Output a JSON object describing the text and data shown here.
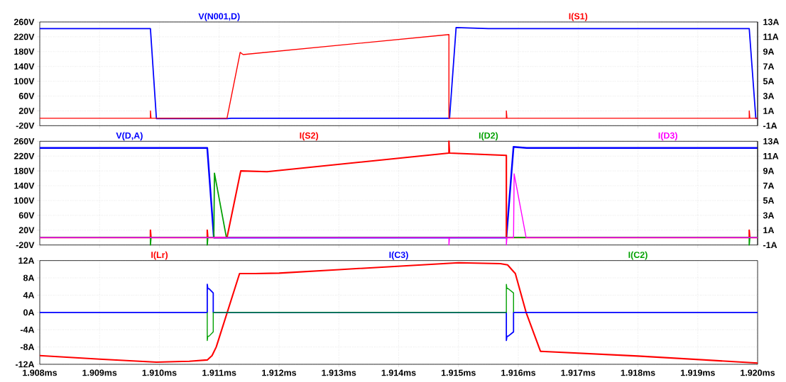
{
  "chart_data": [
    {
      "type": "line",
      "xlim": [
        1.908,
        1.92
      ],
      "ylim": [
        -20,
        260
      ],
      "y2lim": [
        -1,
        13
      ],
      "grid": true,
      "tick_labels": "y",
      "xticks": [
        {
          "value": 1.908,
          "label": null
        },
        {
          "value": 1.909,
          "label": null
        },
        {
          "value": 1.91,
          "label": null
        },
        {
          "value": 1.911,
          "label": null
        },
        {
          "value": 1.912,
          "label": null
        },
        {
          "value": 1.913,
          "label": null
        },
        {
          "value": 1.914,
          "label": null
        },
        {
          "value": 1.915,
          "label": null
        },
        {
          "value": 1.916,
          "label": null
        },
        {
          "value": 1.917,
          "label": null
        },
        {
          "value": 1.918,
          "label": null
        },
        {
          "value": 1.919,
          "label": null
        },
        {
          "value": 1.92,
          "label": null
        }
      ],
      "yticks": [
        {
          "value": -20,
          "label": "-20V"
        },
        {
          "value": 20,
          "label": "20V"
        },
        {
          "value": 60,
          "label": "60V"
        },
        {
          "value": 100,
          "label": "100V"
        },
        {
          "value": 140,
          "label": "140V"
        },
        {
          "value": 180,
          "label": "180V"
        },
        {
          "value": 220,
          "label": "220V"
        },
        {
          "value": 260,
          "label": "260V"
        }
      ],
      "y2ticks": [
        {
          "value": -1,
          "label": "-1A"
        },
        {
          "value": 1,
          "label": "1A"
        },
        {
          "value": 3,
          "label": "3A"
        },
        {
          "value": 5,
          "label": "5A"
        },
        {
          "value": 7,
          "label": "7A"
        },
        {
          "value": 9,
          "label": "9A"
        },
        {
          "value": 11,
          "label": "11A"
        },
        {
          "value": 13,
          "label": "13A"
        }
      ],
      "series": [
        {
          "name": "V(N001,D)",
          "color": "#0000ff",
          "axis": "y",
          "x": [
            1.908,
            1.90985,
            1.90995,
            1.91113,
            1.9112,
            1.91485,
            1.91496,
            1.9155,
            1.91986,
            1.91997,
            1.92
          ],
          "values": [
            242,
            242,
            -1,
            -1,
            0,
            0,
            245,
            242,
            242,
            0,
            0
          ]
        },
        {
          "name": "I(S1)",
          "color": "#ff0000",
          "axis": "y2",
          "x": [
            1.908,
            1.90985,
            1.90985,
            1.90986,
            1.91113,
            1.91135,
            1.9114,
            1.91484,
            1.91484,
            1.9158,
            1.9158,
            1.91581,
            1.91986,
            1.91986,
            1.91987,
            1.92
          ],
          "values": [
            0,
            0,
            1,
            0,
            0,
            8.9,
            8.6,
            11.3,
            0,
            0,
            1,
            0,
            0,
            1,
            0,
            0
          ]
        }
      ]
    },
    {
      "type": "line",
      "xlim": [
        1.908,
        1.92
      ],
      "ylim": [
        -20,
        260
      ],
      "y2lim": [
        -1,
        13
      ],
      "grid": true,
      "tick_labels": "y",
      "xticks": [
        {
          "value": 1.908,
          "label": null
        },
        {
          "value": 1.909,
          "label": null
        },
        {
          "value": 1.91,
          "label": null
        },
        {
          "value": 1.911,
          "label": null
        },
        {
          "value": 1.912,
          "label": null
        },
        {
          "value": 1.913,
          "label": null
        },
        {
          "value": 1.914,
          "label": null
        },
        {
          "value": 1.915,
          "label": null
        },
        {
          "value": 1.916,
          "label": null
        },
        {
          "value": 1.917,
          "label": null
        },
        {
          "value": 1.918,
          "label": null
        },
        {
          "value": 1.919,
          "label": null
        },
        {
          "value": 1.92,
          "label": null
        }
      ],
      "yticks": [
        {
          "value": -20,
          "label": "-20V"
        },
        {
          "value": 20,
          "label": "20V"
        },
        {
          "value": 60,
          "label": "60V"
        },
        {
          "value": 100,
          "label": "100V"
        },
        {
          "value": 140,
          "label": "140V"
        },
        {
          "value": 180,
          "label": "180V"
        },
        {
          "value": 220,
          "label": "220V"
        },
        {
          "value": 260,
          "label": "260V"
        }
      ],
      "y2ticks": [
        {
          "value": -1,
          "label": "-1A"
        },
        {
          "value": 1,
          "label": "1A"
        },
        {
          "value": 3,
          "label": "3A"
        },
        {
          "value": 5,
          "label": "5A"
        },
        {
          "value": 7,
          "label": "7A"
        },
        {
          "value": 9,
          "label": "9A"
        },
        {
          "value": 11,
          "label": "11A"
        },
        {
          "value": 13,
          "label": "13A"
        }
      ],
      "series": [
        {
          "name": "V(D,A)",
          "color": "#0000ff",
          "axis": "y",
          "x": [
            1.908,
            1.9108,
            1.91091,
            1.9158,
            1.91592,
            1.91614,
            1.92
          ],
          "values": [
            242,
            242,
            0,
            0,
            245,
            242,
            242
          ]
        },
        {
          "name": "I(S2)",
          "color": "#ff0000",
          "axis": "y2",
          "x": [
            1.908,
            1.90985,
            1.90985,
            1.90986,
            1.9108,
            1.9108,
            1.91081,
            1.91113,
            1.91136,
            1.9118,
            1.91484,
            1.91484,
            1.91485,
            1.9158,
            1.9158,
            1.91986,
            1.91986,
            1.91987,
            1.92
          ],
          "values": [
            0,
            0,
            1,
            0,
            0,
            1,
            0,
            0,
            9,
            8.9,
            11.4,
            13,
            11.4,
            11.1,
            0,
            0,
            1,
            0,
            0
          ]
        },
        {
          "name": "I(D2)",
          "color": "#00a000",
          "axis": "y2",
          "x": [
            1.908,
            1.90985,
            1.90985,
            1.90986,
            1.9108,
            1.9108,
            1.91081,
            1.91091,
            1.91092,
            1.91112,
            1.91986,
            1.91986,
            1.91987,
            1.92
          ],
          "values": [
            0,
            0,
            -1,
            0,
            0,
            -1,
            0,
            0,
            8.7,
            0,
            0,
            -1,
            0,
            0
          ]
        },
        {
          "name": "I(D3)",
          "color": "#ff00ff",
          "axis": "y2",
          "x": [
            1.908,
            1.91484,
            1.91484,
            1.91485,
            1.9158,
            1.9158,
            1.91581,
            1.91592,
            1.91593,
            1.91613,
            1.92
          ],
          "values": [
            0,
            0,
            -1,
            0,
            0,
            -1,
            0,
            0,
            8.6,
            0,
            0
          ]
        }
      ]
    },
    {
      "type": "line",
      "xlim": [
        1.908,
        1.92
      ],
      "ylim": [
        -12,
        12
      ],
      "grid": true,
      "xticks": [
        {
          "value": 1.908,
          "label": "1.908ms"
        },
        {
          "value": 1.909,
          "label": "1.909ms"
        },
        {
          "value": 1.91,
          "label": "1.910ms"
        },
        {
          "value": 1.911,
          "label": "1.911ms"
        },
        {
          "value": 1.912,
          "label": "1.912ms"
        },
        {
          "value": 1.913,
          "label": "1.913ms"
        },
        {
          "value": 1.914,
          "label": "1.914ms"
        },
        {
          "value": 1.915,
          "label": "1.915ms"
        },
        {
          "value": 1.916,
          "label": "1.916ms"
        },
        {
          "value": 1.917,
          "label": "1.917ms"
        },
        {
          "value": 1.918,
          "label": "1.918ms"
        },
        {
          "value": 1.919,
          "label": "1.919ms"
        },
        {
          "value": 1.92,
          "label": "1.920ms"
        }
      ],
      "yticks": [
        {
          "value": -12,
          "label": "-12A"
        },
        {
          "value": -8,
          "label": "-8A"
        },
        {
          "value": -4,
          "label": "-4A"
        },
        {
          "value": 0,
          "label": "0A"
        },
        {
          "value": 4,
          "label": "4A"
        },
        {
          "value": 8,
          "label": "8A"
        },
        {
          "value": 12,
          "label": "12A"
        }
      ],
      "series": [
        {
          "name": "I(Lr)",
          "color": "#ff0000",
          "x": [
            1.908,
            1.909,
            1.90995,
            1.9105,
            1.9108,
            1.91088,
            1.91095,
            1.91134,
            1.9116,
            1.912,
            1.913,
            1.915,
            1.9157,
            1.91582,
            1.91595,
            1.91613,
            1.91637,
            1.918,
            1.92
          ],
          "values": [
            -10,
            -10.8,
            -11.5,
            -11.3,
            -11,
            -10,
            -8,
            9,
            9,
            9.1,
            9.9,
            11.5,
            11.3,
            11,
            9,
            0,
            -9,
            -10.1,
            -11.7
          ]
        },
        {
          "name": "I(C3)",
          "color": "#0000ff",
          "x": [
            1.908,
            1.9108,
            1.9108,
            1.91081,
            1.91083,
            1.9109,
            1.9109,
            1.9158,
            1.9158,
            1.91581,
            1.91583,
            1.91592,
            1.91592,
            1.92
          ],
          "values": [
            0,
            0,
            6.5,
            5.5,
            5.5,
            4.5,
            0,
            0,
            -6.5,
            -5.5,
            -5.5,
            -4.5,
            0,
            0
          ]
        },
        {
          "name": "I(C2)",
          "color": "#00a000",
          "x": [
            1.9108,
            1.9108,
            1.91081,
            1.91083,
            1.9109,
            1.9109,
            1.9158,
            1.9158,
            1.91581,
            1.91583,
            1.91592,
            1.91592
          ],
          "values": [
            0,
            -6.5,
            -5.5,
            -5.5,
            -4.5,
            0,
            0,
            6.5,
            5.5,
            5.5,
            4.5,
            0
          ]
        }
      ]
    }
  ]
}
